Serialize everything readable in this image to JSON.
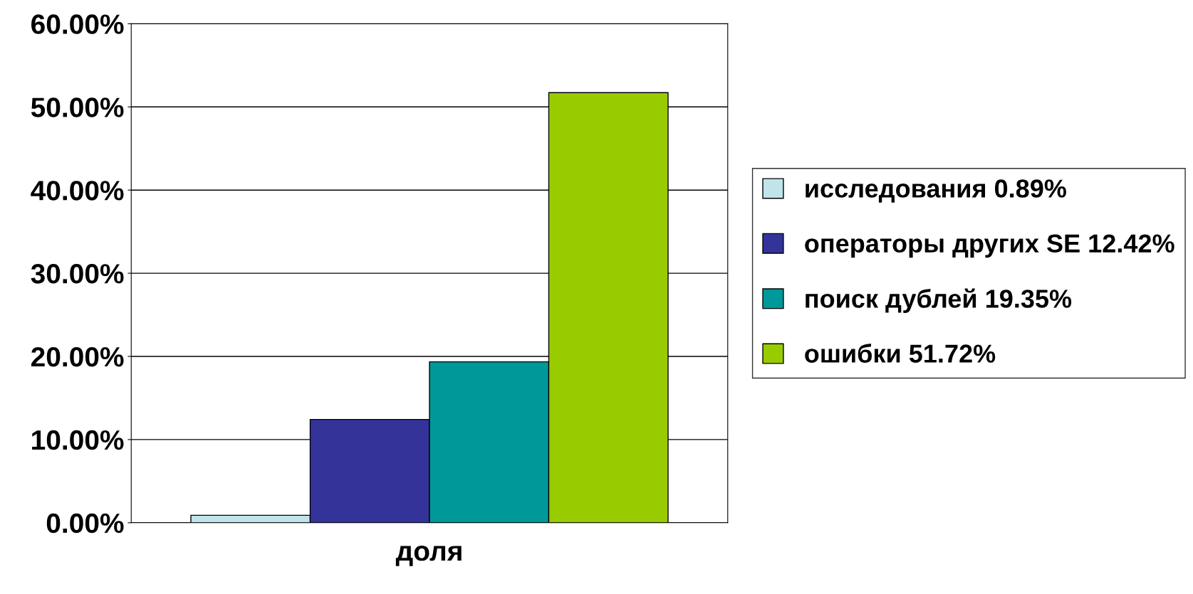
{
  "chart_data": {
    "type": "bar",
    "categories": [
      "доля"
    ],
    "series": [
      {
        "name": "исследования 0.89%",
        "color": "#c0e4ea",
        "values": [
          0.89
        ]
      },
      {
        "name": "операторы других SE 12.42%",
        "color": "#333399",
        "values": [
          12.42
        ]
      },
      {
        "name": "поиск дублей 19.35%",
        "color": "#009999",
        "values": [
          19.35
        ]
      },
      {
        "name": "ошибки 51.72%",
        "color": "#99cc00",
        "values": [
          51.72
        ]
      }
    ],
    "ylim": [
      0,
      60
    ],
    "yticks": [
      {
        "value": 0,
        "label": "0.00%"
      },
      {
        "value": 10,
        "label": "10.00%"
      },
      {
        "value": 20,
        "label": "20.00%"
      },
      {
        "value": 30,
        "label": "30.00%"
      },
      {
        "value": 40,
        "label": "40.00%"
      },
      {
        "value": 50,
        "label": "50.00%"
      },
      {
        "value": 60,
        "label": "60.00%"
      }
    ],
    "grid": "y",
    "legend": "right"
  }
}
